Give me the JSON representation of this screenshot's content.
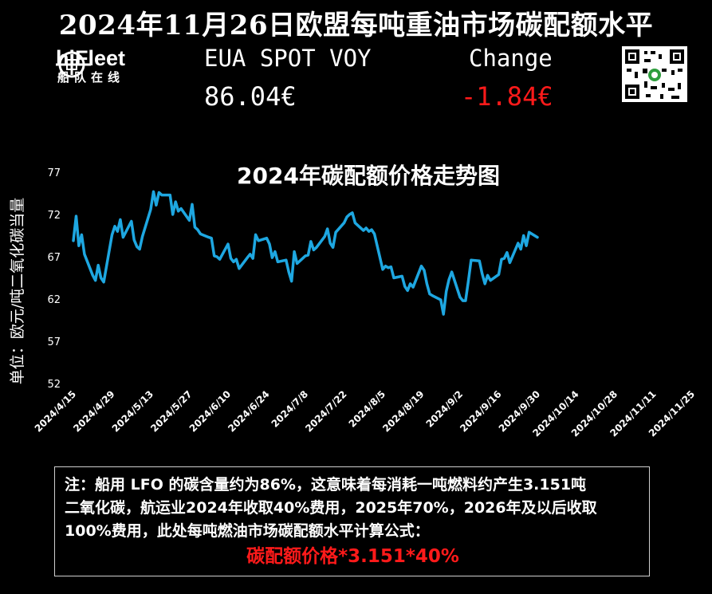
{
  "page": {
    "title": "2024年11月26日欧盟每吨重油市场碳配额水平",
    "brand": {
      "name": "hiFleet",
      "subtitle": "船队在线"
    },
    "eua": {
      "label": "EUA SPOT VOY",
      "value": "86.04€"
    },
    "change": {
      "label": "Change",
      "value": "-1.84€"
    },
    "colors": {
      "background": "#000000",
      "line": "#1ea7e1",
      "negative": "#ff1a1a",
      "text": "#ffffff"
    }
  },
  "note": {
    "lines": [
      "注：船用 LFO 的碳含量约为86%，这意味着每消耗一吨燃料约产生3.151吨",
      "二氧化碳，航运业2024年收取40%费用，2025年70%，2026年及以后收取",
      "100%费用，此处每吨燃油市场碳配额水平计算公式："
    ],
    "formula": "碳配额价格*3.151*40%"
  },
  "chart_data": {
    "type": "line",
    "title": "2024年碳配额价格走势图",
    "ylabel": "单位：欧元/吨二氧化碳当量",
    "xlabel": "",
    "ylim": [
      52,
      77
    ],
    "yticks": [
      52,
      57,
      62,
      67,
      72,
      77
    ],
    "grid": false,
    "legend": "none",
    "xticks": [
      "2024/4/15",
      "2024/4/29",
      "2024/5/13",
      "2024/5/27",
      "2024/6/10",
      "2024/6/24",
      "2024/7/8",
      "2024/7/22",
      "2024/8/5",
      "2024/8/19",
      "2024/9/2",
      "2024/9/16",
      "2024/9/30",
      "2024/10/14",
      "2024/10/28",
      "2024/11/11",
      "2024/11/25"
    ],
    "x_range": [
      "2024/4/15",
      "2024/11/25"
    ],
    "series": [
      {
        "points": [
          [
            "2024/4/15",
            68.9
          ],
          [
            "2024/4/16",
            71.8
          ],
          [
            "2024/4/17",
            68.3
          ],
          [
            "2024/4/18",
            69.6
          ],
          [
            "2024/4/19",
            67.3
          ],
          [
            "2024/4/22",
            64.8
          ],
          [
            "2024/4/23",
            64.2
          ],
          [
            "2024/4/24",
            66.0
          ],
          [
            "2024/4/25",
            64.5
          ],
          [
            "2024/4/26",
            64.0
          ],
          [
            "2024/4/29",
            69.6
          ],
          [
            "2024/4/30",
            70.6
          ],
          [
            "2024/5/1",
            70.0
          ],
          [
            "2024/5/2",
            71.4
          ],
          [
            "2024/5/3",
            69.3
          ],
          [
            "2024/5/6",
            71.2
          ],
          [
            "2024/5/7",
            69.0
          ],
          [
            "2024/5/8",
            68.2
          ],
          [
            "2024/5/9",
            67.9
          ],
          [
            "2024/5/10",
            69.4
          ],
          [
            "2024/5/13",
            72.6
          ],
          [
            "2024/5/14",
            74.7
          ],
          [
            "2024/5/15",
            73.1
          ],
          [
            "2024/5/16",
            74.6
          ],
          [
            "2024/5/17",
            74.3
          ],
          [
            "2024/5/20",
            74.3
          ],
          [
            "2024/5/21",
            72.0
          ],
          [
            "2024/5/22",
            73.5
          ],
          [
            "2024/5/23",
            72.4
          ],
          [
            "2024/5/24",
            72.7
          ],
          [
            "2024/5/27",
            71.3
          ],
          [
            "2024/5/28",
            73.2
          ],
          [
            "2024/5/29",
            70.5
          ],
          [
            "2024/5/30",
            70.2
          ],
          [
            "2024/5/31",
            69.7
          ],
          [
            "2024/6/3",
            69.3
          ],
          [
            "2024/6/4",
            69.2
          ],
          [
            "2024/6/5",
            67.1
          ],
          [
            "2024/6/6",
            67.0
          ],
          [
            "2024/6/7",
            66.7
          ],
          [
            "2024/6/10",
            68.5
          ],
          [
            "2024/6/11",
            66.8
          ],
          [
            "2024/6/12",
            66.4
          ],
          [
            "2024/6/13",
            66.7
          ],
          [
            "2024/6/14",
            65.6
          ],
          [
            "2024/6/17",
            66.9
          ],
          [
            "2024/6/18",
            67.3
          ],
          [
            "2024/6/19",
            66.8
          ],
          [
            "2024/6/20",
            69.6
          ],
          [
            "2024/6/21",
            68.9
          ],
          [
            "2024/6/24",
            69.2
          ],
          [
            "2024/6/25",
            68.5
          ],
          [
            "2024/6/26",
            66.9
          ],
          [
            "2024/6/27",
            67.6
          ],
          [
            "2024/6/28",
            66.4
          ],
          [
            "2024/7/1",
            66.6
          ],
          [
            "2024/7/2",
            65.2
          ],
          [
            "2024/7/3",
            64.1
          ],
          [
            "2024/7/4",
            67.6
          ],
          [
            "2024/7/5",
            66.2
          ],
          [
            "2024/7/8",
            67.1
          ],
          [
            "2024/7/9",
            67.2
          ],
          [
            "2024/7/10",
            68.8
          ],
          [
            "2024/7/11",
            67.8
          ],
          [
            "2024/7/12",
            68.1
          ],
          [
            "2024/7/15",
            69.4
          ],
          [
            "2024/7/16",
            70.3
          ],
          [
            "2024/7/17",
            68.6
          ],
          [
            "2024/7/18",
            68.1
          ],
          [
            "2024/7/19",
            69.9
          ],
          [
            "2024/7/22",
            71.0
          ],
          [
            "2024/7/23",
            71.7
          ],
          [
            "2024/7/24",
            72.0
          ],
          [
            "2024/7/25",
            72.2
          ],
          [
            "2024/7/26",
            71.0
          ],
          [
            "2024/7/29",
            70.1
          ],
          [
            "2024/7/30",
            70.4
          ],
          [
            "2024/7/31",
            70.0
          ],
          [
            "2024/8/1",
            70.2
          ],
          [
            "2024/8/2",
            69.7
          ],
          [
            "2024/8/5",
            65.5
          ],
          [
            "2024/8/6",
            65.9
          ],
          [
            "2024/8/7",
            65.7
          ],
          [
            "2024/8/8",
            65.8
          ],
          [
            "2024/8/9",
            64.5
          ],
          [
            "2024/8/12",
            64.7
          ],
          [
            "2024/8/13",
            63.5
          ],
          [
            "2024/8/14",
            63.0
          ],
          [
            "2024/8/15",
            63.8
          ],
          [
            "2024/8/16",
            63.4
          ],
          [
            "2024/8/19",
            65.9
          ],
          [
            "2024/8/20",
            65.4
          ],
          [
            "2024/8/21",
            63.8
          ],
          [
            "2024/8/22",
            62.6
          ],
          [
            "2024/8/23",
            62.4
          ],
          [
            "2024/8/26",
            61.9
          ],
          [
            "2024/8/27",
            60.2
          ],
          [
            "2024/8/28",
            62.9
          ],
          [
            "2024/8/29",
            64.3
          ],
          [
            "2024/8/30",
            65.2
          ],
          [
            "2024/9/2",
            62.2
          ],
          [
            "2024/9/3",
            61.8
          ],
          [
            "2024/9/4",
            61.8
          ],
          [
            "2024/9/5",
            64.1
          ],
          [
            "2024/9/6",
            66.6
          ],
          [
            "2024/9/9",
            66.5
          ],
          [
            "2024/9/10",
            65.0
          ],
          [
            "2024/9/11",
            63.8
          ],
          [
            "2024/9/12",
            64.8
          ],
          [
            "2024/9/13",
            64.2
          ],
          [
            "2024/9/16",
            64.9
          ],
          [
            "2024/9/17",
            66.7
          ],
          [
            "2024/9/18",
            66.8
          ],
          [
            "2024/9/19",
            67.5
          ],
          [
            "2024/9/20",
            66.3
          ],
          [
            "2024/9/23",
            68.6
          ],
          [
            "2024/9/24",
            67.9
          ],
          [
            "2024/9/25",
            69.5
          ],
          [
            "2024/9/26",
            68.3
          ],
          [
            "2024/9/27",
            69.9
          ],
          [
            "2024/9/30",
            69.3
          ]
        ]
      }
    ]
  }
}
